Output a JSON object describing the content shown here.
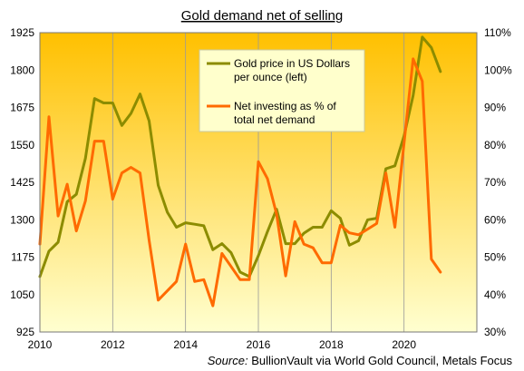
{
  "chart_data": {
    "type": "line",
    "title": "Gold demand net of selling",
    "source_label": "Source:",
    "source_text": " BullionVault via World Gold Council, Metals Focus",
    "x_ticks": [
      "2010",
      "2012",
      "2014",
      "2016",
      "2018",
      "2020"
    ],
    "xlim": [
      2010,
      2022
    ],
    "y_left": {
      "ticks": [
        "925",
        "1050",
        "1175",
        "1300",
        "1425",
        "1550",
        "1675",
        "1800",
        "1925"
      ],
      "lim": [
        925,
        1925
      ]
    },
    "y_right": {
      "ticks": [
        "30%",
        "40%",
        "50%",
        "60%",
        "70%",
        "80%",
        "90%",
        "100%",
        "110%"
      ],
      "lim": [
        30,
        110
      ]
    },
    "background": {
      "top": "#ffc000",
      "bottom": "#ffffd0"
    },
    "grid": "vertical",
    "legend_position": "top-center",
    "series": [
      {
        "name": "Gold price in US Dollars per ounce (left)",
        "axis": "left",
        "color": "#8c8c00",
        "x": [
          2010.0,
          2010.25,
          2010.5,
          2010.75,
          2011.0,
          2011.25,
          2011.5,
          2011.75,
          2012.0,
          2012.25,
          2012.5,
          2012.75,
          2013.0,
          2013.25,
          2013.5,
          2013.75,
          2014.0,
          2014.25,
          2014.5,
          2014.75,
          2015.0,
          2015.25,
          2015.5,
          2015.75,
          2016.0,
          2016.25,
          2016.5,
          2016.75,
          2017.0,
          2017.25,
          2017.5,
          2017.75,
          2018.0,
          2018.25,
          2018.5,
          2018.75,
          2019.0,
          2019.25,
          2019.5,
          2019.75,
          2020.0,
          2020.25,
          2020.5,
          2020.75,
          2021.0
        ],
        "values": [
          1110,
          1195,
          1225,
          1360,
          1385,
          1505,
          1705,
          1690,
          1690,
          1615,
          1655,
          1720,
          1630,
          1415,
          1325,
          1275,
          1290,
          1285,
          1280,
          1200,
          1220,
          1190,
          1125,
          1110,
          1180,
          1260,
          1335,
          1220,
          1220,
          1255,
          1275,
          1275,
          1330,
          1305,
          1215,
          1230,
          1300,
          1305,
          1470,
          1480,
          1580,
          1715,
          1910,
          1875,
          1795
        ]
      },
      {
        "name": "Net investing as % of total net demand",
        "axis": "right",
        "color": "#ff6a00",
        "x": [
          2010.0,
          2010.25,
          2010.5,
          2010.75,
          2011.0,
          2011.25,
          2011.5,
          2011.75,
          2012.0,
          2012.25,
          2012.5,
          2012.75,
          2013.0,
          2013.25,
          2013.5,
          2013.75,
          2014.0,
          2014.25,
          2014.5,
          2014.75,
          2015.0,
          2015.25,
          2015.5,
          2015.75,
          2016.0,
          2016.25,
          2016.5,
          2016.75,
          2017.0,
          2017.25,
          2017.5,
          2017.75,
          2018.0,
          2018.25,
          2018.5,
          2018.75,
          2019.0,
          2019.25,
          2019.5,
          2019.75,
          2020.0,
          2020.25,
          2020.5,
          2020.75,
          2021.0
        ],
        "values": [
          53.5,
          87.5,
          61,
          69.5,
          57,
          65,
          81,
          81,
          65.5,
          72.5,
          74,
          72.5,
          54.5,
          38.5,
          41,
          43.5,
          53.5,
          43.5,
          44,
          37,
          51,
          47.5,
          44,
          44,
          75.5,
          71,
          61.5,
          45,
          59.5,
          53.5,
          52.5,
          48.5,
          48.5,
          58.5,
          56.5,
          56,
          57.5,
          59,
          72.5,
          58,
          80.5,
          103,
          97,
          49.5,
          46
        ]
      }
    ],
    "legend": [
      {
        "label_lines": [
          "Gold price in US Dollars",
          "per ounce (left)"
        ],
        "color": "#8c8c00"
      },
      {
        "label_lines": [
          "Net investing as % of",
          "total net demand"
        ],
        "color": "#ff6a00"
      }
    ]
  }
}
